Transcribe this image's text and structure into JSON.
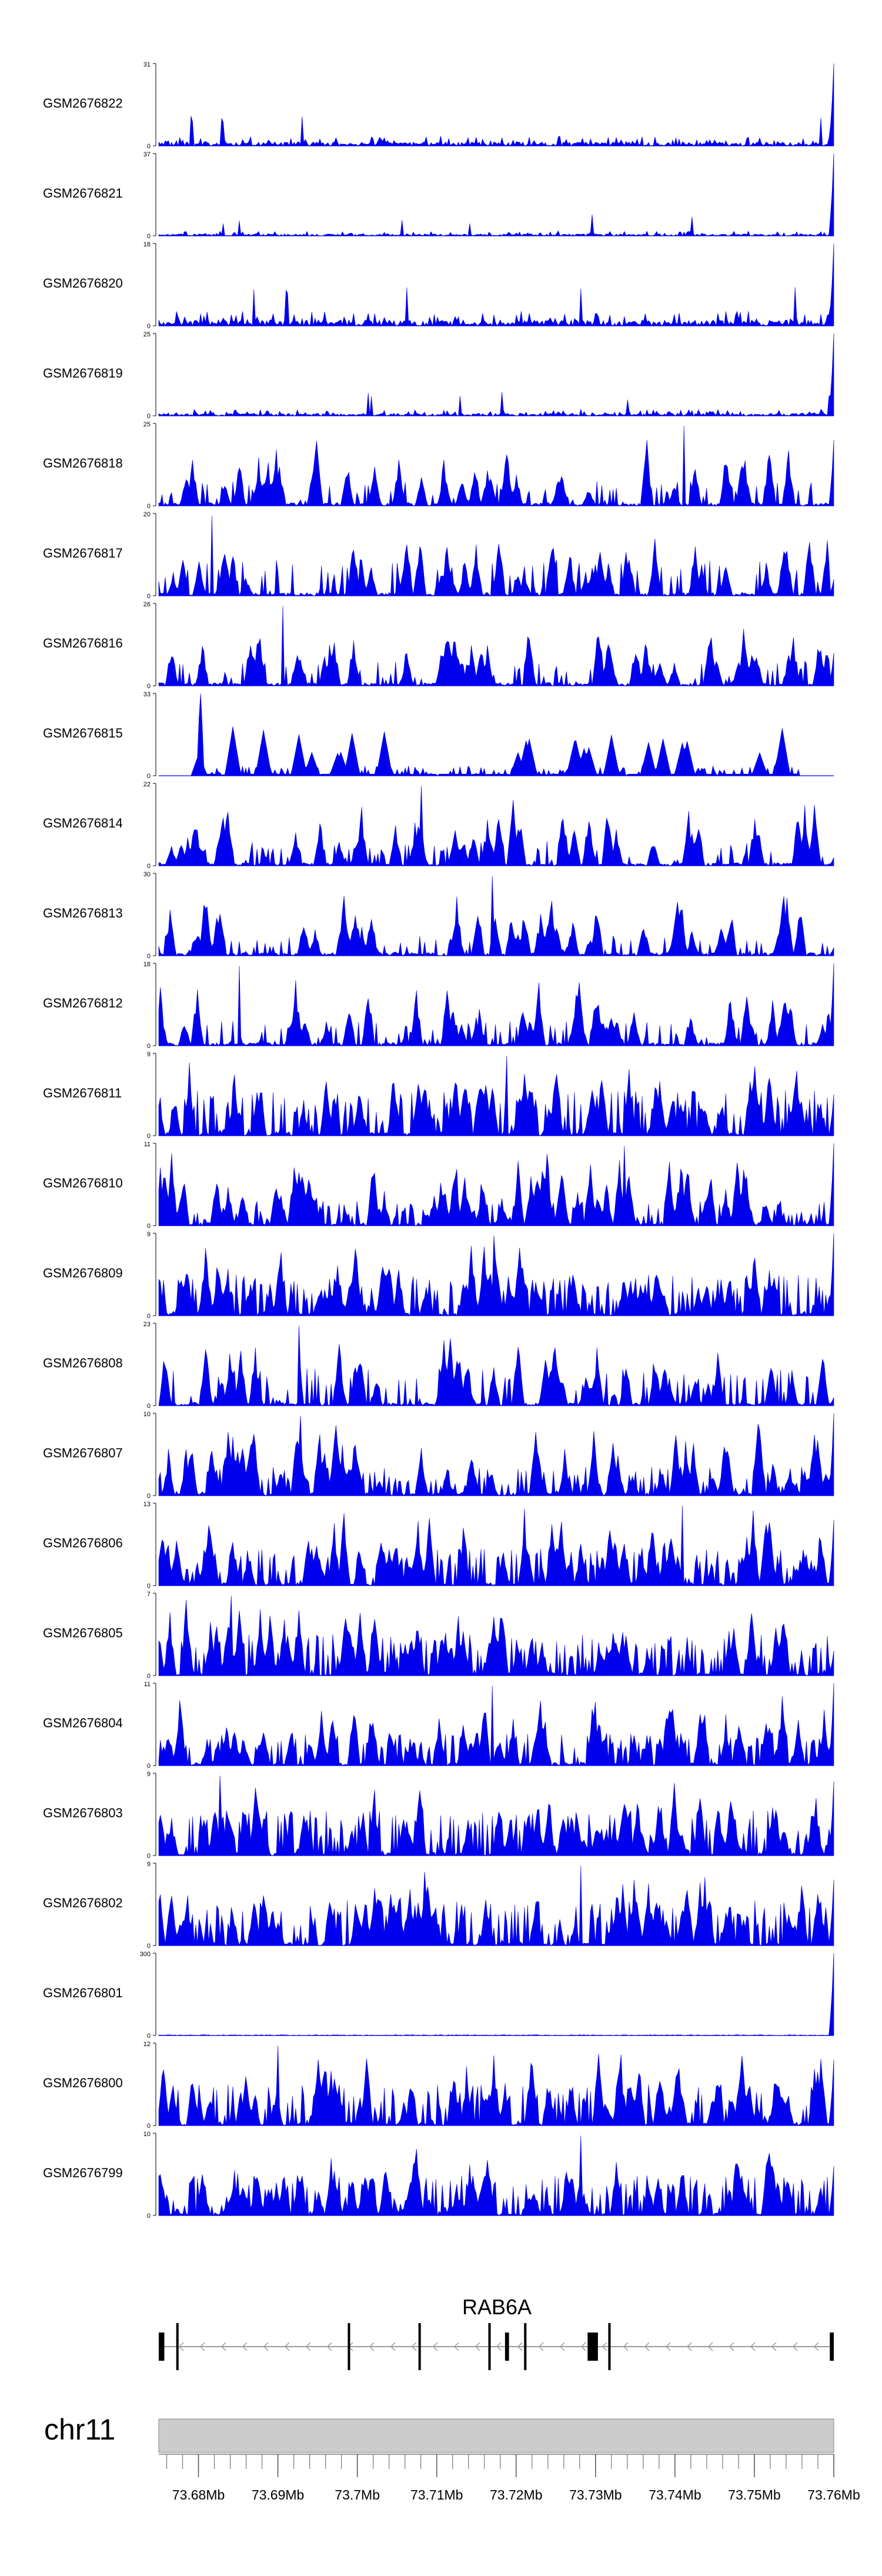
{
  "chart_data": {
    "type": "area",
    "title": "",
    "xlabel": "",
    "ylabel": "",
    "genome_axis": {
      "chromosome": "chr11",
      "xlim_mb": [
        73.675,
        73.76
      ],
      "tick_labels": [
        "73.68Mb",
        "73.69Mb",
        "73.7Mb",
        "73.71Mb",
        "73.72Mb",
        "73.73Mb",
        "73.74Mb",
        "73.75Mb",
        "73.76Mb"
      ],
      "tick_values_mb": [
        73.68,
        73.69,
        73.7,
        73.71,
        73.72,
        73.73,
        73.74,
        73.75,
        73.76
      ],
      "minor_tick_step_mb": 0.002
    },
    "gene_track": {
      "gene_name": "RAB6A",
      "strand": "-",
      "exons_mb": [
        [
          73.675,
          73.6757
        ],
        [
          73.6772,
          73.6775
        ],
        [
          73.6988,
          73.6991
        ],
        [
          73.7077,
          73.708
        ],
        [
          73.7165,
          73.7168
        ],
        [
          73.7186,
          73.7191
        ],
        [
          73.721,
          73.7213
        ],
        [
          73.729,
          73.7303
        ],
        [
          73.7316,
          73.7319
        ],
        [
          73.7595,
          73.76
        ]
      ]
    },
    "series_color": "#0000ee",
    "series": [
      {
        "name": "GSM2676822",
        "ymax": 31,
        "profile": "baseline",
        "mean": 0.12,
        "seed": 22,
        "end_spike": 1.0
      },
      {
        "name": "GSM2676821",
        "ymax": 37,
        "profile": "baseline",
        "mean": 0.06,
        "seed": 21,
        "end_spike": 1.0
      },
      {
        "name": "GSM2676820",
        "ymax": 18,
        "profile": "baseline",
        "mean": 0.18,
        "seed": 20,
        "end_spike": 1.0
      },
      {
        "name": "GSM2676819",
        "ymax": 25,
        "profile": "baseline",
        "mean": 0.08,
        "seed": 19,
        "end_spike": 1.0
      },
      {
        "name": "GSM2676818",
        "ymax": 25,
        "profile": "peaks",
        "mean": 0.3,
        "seed": 18,
        "end_spike": 0.8
      },
      {
        "name": "GSM2676817",
        "ymax": 20,
        "profile": "peaks",
        "mean": 0.45,
        "seed": 17,
        "end_spike": 0.2
      },
      {
        "name": "GSM2676816",
        "ymax": 26,
        "profile": "peaks",
        "mean": 0.3,
        "seed": 16,
        "end_spike": 0.4
      },
      {
        "name": "GSM2676815",
        "ymax": 33,
        "profile": "sparse",
        "mean": 0.3,
        "seed": 15,
        "end_spike": 0.0
      },
      {
        "name": "GSM2676814",
        "ymax": 22,
        "profile": "peaks",
        "mean": 0.3,
        "seed": 14,
        "end_spike": 0.1
      },
      {
        "name": "GSM2676813",
        "ymax": 30,
        "profile": "peaks",
        "mean": 0.25,
        "seed": 13,
        "end_spike": 0.1
      },
      {
        "name": "GSM2676812",
        "ymax": 18,
        "profile": "peaks",
        "mean": 0.3,
        "seed": 12,
        "end_spike": 1.0
      },
      {
        "name": "GSM2676811",
        "ymax": 9,
        "profile": "dense",
        "mean": 0.55,
        "seed": 11,
        "end_spike": 0.5
      },
      {
        "name": "GSM2676810",
        "ymax": 11,
        "profile": "dense",
        "mean": 0.3,
        "seed": 10,
        "end_spike": 1.0
      },
      {
        "name": "GSM2676809",
        "ymax": 9,
        "profile": "dense",
        "mean": 0.5,
        "seed": 9,
        "end_spike": 1.0
      },
      {
        "name": "GSM2676808",
        "ymax": 23,
        "profile": "peaks",
        "mean": 0.45,
        "seed": 8,
        "end_spike": 0.1
      },
      {
        "name": "GSM2676807",
        "ymax": 10,
        "profile": "dense",
        "mean": 0.35,
        "seed": 7,
        "end_spike": 1.0
      },
      {
        "name": "GSM2676806",
        "ymax": 13,
        "profile": "dense",
        "mean": 0.45,
        "seed": 6,
        "end_spike": 0.8
      },
      {
        "name": "GSM2676805",
        "ymax": 7,
        "profile": "dense",
        "mean": 0.5,
        "seed": 5,
        "end_spike": 0.3
      },
      {
        "name": "GSM2676804",
        "ymax": 11,
        "profile": "dense",
        "mean": 0.4,
        "seed": 4,
        "end_spike": 1.0
      },
      {
        "name": "GSM2676803",
        "ymax": 9,
        "profile": "dense",
        "mean": 0.55,
        "seed": 3,
        "end_spike": 0.9
      },
      {
        "name": "GSM2676802",
        "ymax": 9,
        "profile": "dense",
        "mean": 0.55,
        "seed": 2,
        "end_spike": 0.8
      },
      {
        "name": "GSM2676801",
        "ymax": 300,
        "profile": "flat",
        "mean": 0.01,
        "seed": 1,
        "end_spike": 1.0
      },
      {
        "name": "GSM2676800",
        "ymax": 12,
        "profile": "dense",
        "mean": 0.5,
        "seed": 100,
        "end_spike": 0.8
      },
      {
        "name": "GSM2676799",
        "ymax": 10,
        "profile": "dense",
        "mean": 0.5,
        "seed": 99,
        "end_spike": 0.6
      }
    ]
  }
}
